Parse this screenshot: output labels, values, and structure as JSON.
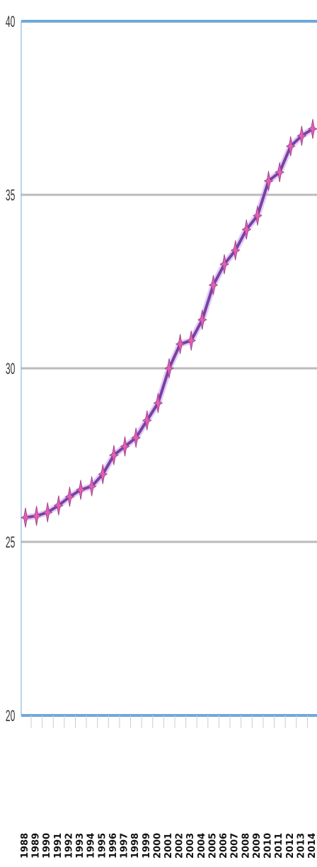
{
  "chart_data": {
    "type": "line",
    "title": "",
    "xlabel": "",
    "ylabel": "",
    "x": [
      "1988",
      "1989",
      "1990",
      "1991",
      "1992",
      "1993",
      "1994",
      "1995",
      "1996",
      "1997",
      "1998",
      "1999",
      "2000",
      "2001",
      "2002",
      "2003",
      "2004",
      "2005",
      "2006",
      "2007",
      "2008",
      "2009",
      "2010",
      "2011",
      "2012",
      "2013",
      "2014"
    ],
    "series": [
      {
        "name": "",
        "values": [
          25.7,
          25.75,
          25.85,
          26.05,
          26.3,
          26.5,
          26.6,
          26.95,
          27.5,
          27.75,
          28.0,
          28.5,
          29.0,
          30.0,
          30.7,
          30.8,
          31.4,
          32.4,
          33.0,
          33.4,
          34.0,
          34.4,
          35.4,
          35.65,
          36.4,
          36.7,
          36.9
        ]
      }
    ],
    "yticks": [
      20,
      25,
      30,
      35,
      40
    ],
    "ylim": [
      20,
      40
    ],
    "grid": true,
    "line_color": "#7b3fa8",
    "marker_color": "#e060b0",
    "gridline_color": "#bbbbbb",
    "boundary_line_color": "#6fa8dc"
  }
}
